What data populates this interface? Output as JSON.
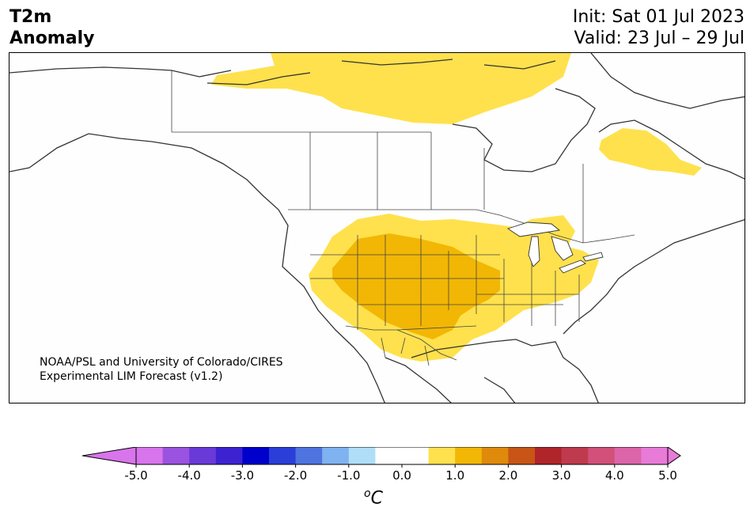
{
  "title": {
    "line1": "T2m",
    "line2": "Anomaly"
  },
  "dates": {
    "init": "Init: Sat 01 Jul 2023",
    "valid": "Valid: 23 Jul – 29 Jul"
  },
  "credit": {
    "line1": "NOAA/PSL and University of Colorado/CIRES",
    "line2": "Experimental LIM Forecast (v1.2)"
  },
  "colorbar": {
    "unit_base": "C",
    "unit_sup": "o",
    "ticks": [
      "-5.0",
      "-4.0",
      "-3.0",
      "-2.0",
      "-1.0",
      "0.0",
      "1.0",
      "2.0",
      "3.0",
      "4.0",
      "5.0"
    ],
    "bins": [
      "#d874ec",
      "#9a53e0",
      "#6a3ad8",
      "#3d22d2",
      "#0000cd",
      "#2a3ed8",
      "#4f74e0",
      "#7fb2f0",
      "#b0def8",
      "#ffffff",
      "#ffffff",
      "#ffe14d",
      "#f2b705",
      "#e08a0c",
      "#c85515",
      "#b0252a",
      "#c03a4e",
      "#d2507a",
      "#dc64a8",
      "#e87ad8"
    ],
    "under_color": "#d874ec",
    "over_color": "#e87ad8"
  },
  "map_colors": {
    "light_anomaly": "#ffe14d",
    "strong_anomaly": "#f2b705",
    "coast": "#333333",
    "border": "#444444"
  }
}
